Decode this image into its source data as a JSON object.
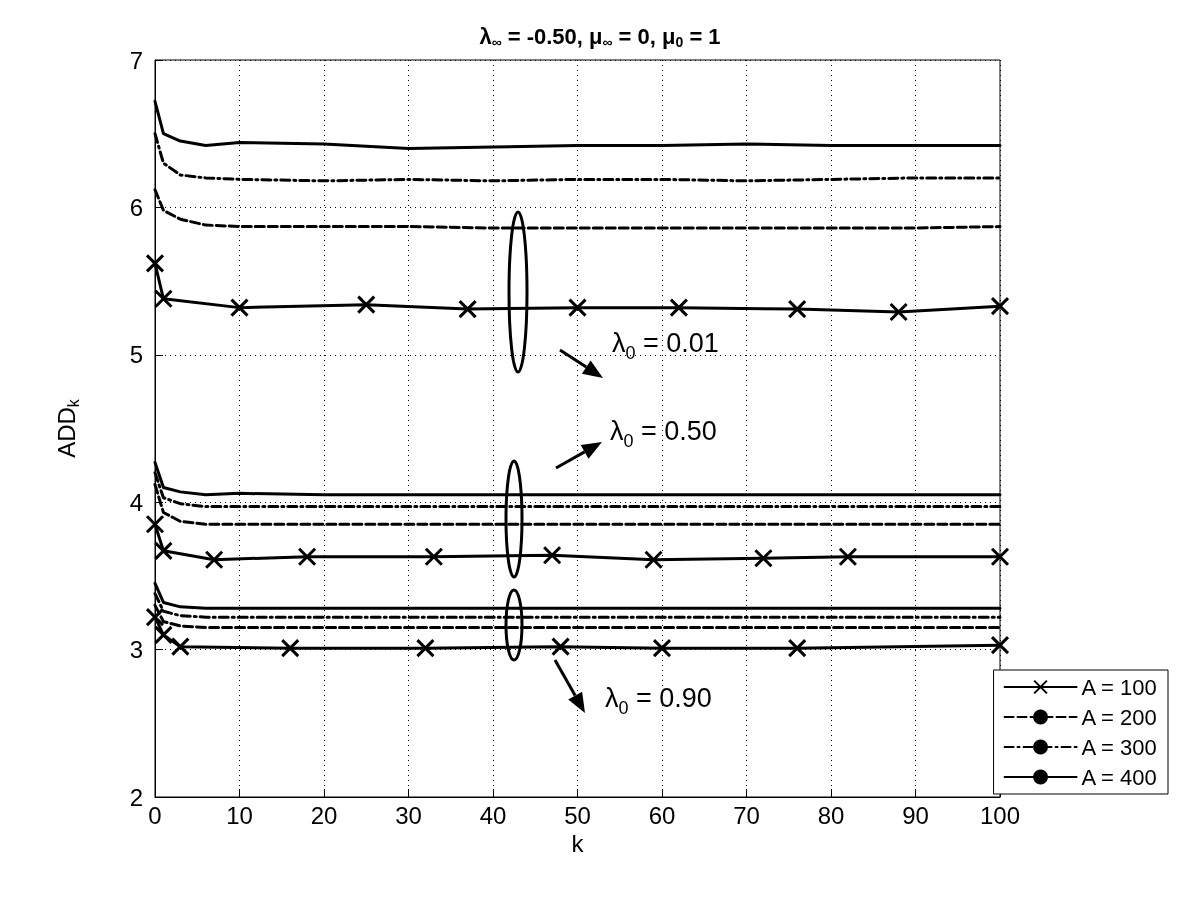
{
  "chart_data": {
    "type": "line",
    "title": "λ$_{∞}$ = -0.50, μ$_{∞}$ = 0, μ$_{0}$ = 1",
    "xlabel": "k",
    "ylabel": "ADD$_{k}$",
    "xlim": [
      0,
      100
    ],
    "xticks": [
      0,
      10,
      20,
      30,
      40,
      50,
      60,
      70,
      80,
      90,
      100
    ],
    "ylim": [
      2,
      7
    ],
    "yticks": [
      2,
      3,
      4,
      5,
      6,
      7
    ],
    "grid": true,
    "legend": "bottom right",
    "series": [
      {
        "name": "A = 100",
        "color": "#000000",
        "line_style": "solid",
        "marker": "cross",
        "x": [
          0,
          1,
          10,
          25,
          37,
          50,
          62,
          76,
          88,
          100
        ],
        "values": [
          5.62,
          5.38,
          5.32,
          5.34,
          5.31,
          5.32,
          5.32,
          5.31,
          5.29,
          5.33
        ]
      },
      {
        "name": "A = 200",
        "color": "#000000",
        "line_style": "dashed",
        "marker": "none",
        "x": [
          0,
          1,
          3,
          6,
          10,
          20,
          30,
          40,
          50,
          60,
          70,
          80,
          90,
          100
        ],
        "values": [
          6.12,
          5.98,
          5.92,
          5.88,
          5.87,
          5.87,
          5.87,
          5.86,
          5.86,
          5.86,
          5.86,
          5.86,
          5.86,
          5.87
        ]
      },
      {
        "name": "A = 300",
        "color": "#000000",
        "line_style": "dashdot",
        "marker": "none",
        "x": [
          0,
          1,
          3,
          6,
          10,
          20,
          30,
          40,
          50,
          60,
          70,
          80,
          90,
          100
        ],
        "values": [
          6.5,
          6.3,
          6.22,
          6.2,
          6.19,
          6.18,
          6.19,
          6.18,
          6.19,
          6.19,
          6.18,
          6.19,
          6.2,
          6.2
        ]
      },
      {
        "name": "A = 400",
        "color": "#000000",
        "line_style": "solid",
        "marker": "none",
        "x": [
          0,
          1,
          3,
          6,
          10,
          20,
          30,
          40,
          50,
          60,
          70,
          80,
          90,
          100
        ],
        "values": [
          6.72,
          6.5,
          6.45,
          6.42,
          6.44,
          6.43,
          6.4,
          6.41,
          6.42,
          6.42,
          6.43,
          6.42,
          6.42,
          6.42
        ]
      },
      {
        "color": "#000000",
        "line_style": "solid",
        "marker": "cross",
        "x": [
          0,
          1,
          7,
          18,
          33,
          47,
          59,
          72,
          82,
          100
        ],
        "values": [
          3.85,
          3.67,
          3.61,
          3.63,
          3.63,
          3.64,
          3.61,
          3.62,
          3.63,
          3.63
        ]
      },
      {
        "color": "#000000",
        "line_style": "dashed",
        "marker": "none",
        "x": [
          0,
          1,
          3,
          6,
          10,
          20,
          30,
          40,
          50,
          60,
          70,
          80,
          90,
          100
        ],
        "values": [
          4.12,
          3.93,
          3.87,
          3.85,
          3.85,
          3.85,
          3.85,
          3.85,
          3.85,
          3.85,
          3.85,
          3.85,
          3.85,
          3.85
        ]
      },
      {
        "color": "#000000",
        "line_style": "dashdot",
        "marker": "none",
        "x": [
          0,
          1,
          3,
          6,
          10,
          20,
          30,
          40,
          50,
          60,
          70,
          80,
          90,
          100
        ],
        "values": [
          4.2,
          4.03,
          3.99,
          3.97,
          3.97,
          3.97,
          3.97,
          3.97,
          3.97,
          3.97,
          3.97,
          3.97,
          3.97,
          3.97
        ]
      },
      {
        "color": "#000000",
        "line_style": "solid",
        "marker": "none",
        "x": [
          0,
          1,
          3,
          6,
          10,
          20,
          30,
          40,
          50,
          60,
          70,
          80,
          90,
          100
        ],
        "values": [
          4.27,
          4.1,
          4.07,
          4.05,
          4.06,
          4.05,
          4.05,
          4.05,
          4.05,
          4.05,
          4.05,
          4.05,
          4.05,
          4.05
        ]
      },
      {
        "color": "#000000",
        "line_style": "solid",
        "marker": "cross",
        "x": [
          0,
          1,
          3,
          16,
          32,
          48,
          60,
          76,
          100
        ],
        "values": [
          3.22,
          3.1,
          3.02,
          3.01,
          3.01,
          3.02,
          3.01,
          3.01,
          3.03
        ]
      },
      {
        "color": "#000000",
        "line_style": "dashed",
        "marker": "none",
        "x": [
          0,
          1,
          3,
          6,
          10,
          20,
          30,
          40,
          50,
          60,
          70,
          80,
          90,
          100
        ],
        "values": [
          3.3,
          3.19,
          3.16,
          3.15,
          3.15,
          3.15,
          3.15,
          3.15,
          3.15,
          3.15,
          3.15,
          3.15,
          3.15,
          3.15
        ]
      },
      {
        "color": "#000000",
        "line_style": "dashdot",
        "marker": "none",
        "x": [
          0,
          1,
          3,
          6,
          10,
          20,
          30,
          40,
          50,
          60,
          70,
          80,
          90,
          100
        ],
        "values": [
          3.38,
          3.26,
          3.23,
          3.22,
          3.22,
          3.22,
          3.22,
          3.22,
          3.22,
          3.22,
          3.22,
          3.22,
          3.22,
          3.22
        ]
      },
      {
        "color": "#000000",
        "line_style": "solid",
        "marker": "none",
        "x": [
          0,
          1,
          3,
          6,
          10,
          20,
          30,
          40,
          50,
          60,
          70,
          80,
          90,
          100
        ],
        "values": [
          3.45,
          3.32,
          3.29,
          3.28,
          3.28,
          3.28,
          3.28,
          3.28,
          3.28,
          3.28,
          3.28,
          3.28,
          3.28,
          3.28
        ]
      }
    ],
    "annotations": [
      "λ$_{0}$ = 0.01",
      "λ$_{0}$ = 0.50",
      "λ$_{0}$ = 0.90"
    ]
  }
}
